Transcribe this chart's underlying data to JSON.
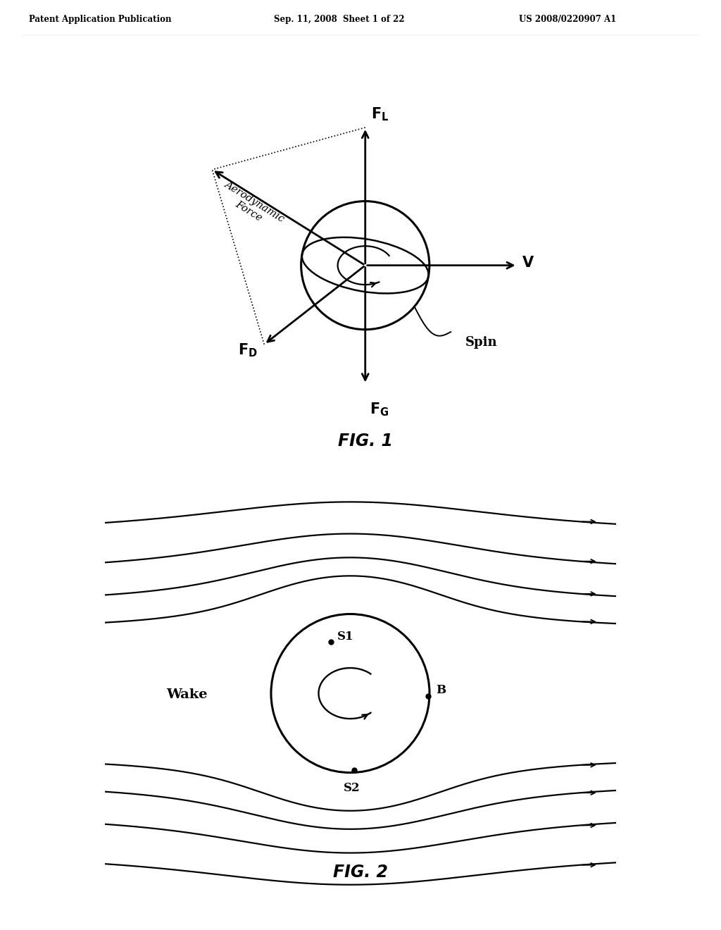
{
  "header_left": "Patent Application Publication",
  "header_mid": "Sep. 11, 2008  Sheet 1 of 22",
  "header_right": "US 2008/0220907 A1",
  "fig1_title": "FIG. 1",
  "fig2_title": "FIG. 2",
  "bg_color": "#ffffff",
  "line_color": "#000000"
}
